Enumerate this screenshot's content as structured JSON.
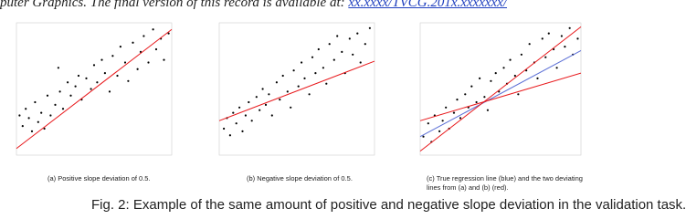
{
  "header": {
    "text": "puter Graphics. The final version of this record is available at: ",
    "link": "xx.xxxx/TVCG.201x.xxxxxxx/"
  },
  "figure_caption": "Fig. 2: Example of the same amount of positive and negative slope deviation in the validation task.",
  "chart_data": [
    {
      "type": "scatter",
      "caption": "(a) Positive slope deviation of 0.5.",
      "color": "#000000",
      "xlim": [
        0,
        100
      ],
      "ylim": [
        0,
        100
      ],
      "x": [
        2,
        4,
        6,
        8,
        10,
        12,
        14,
        16,
        18,
        20,
        22,
        25,
        27,
        28,
        30,
        33,
        35,
        38,
        40,
        42,
        45,
        48,
        50,
        52,
        55,
        57,
        60,
        62,
        65,
        67,
        70,
        72,
        75,
        78,
        80,
        82,
        85,
        88,
        90,
        93,
        95,
        98
      ],
      "values": [
        30,
        22,
        35,
        28,
        18,
        40,
        25,
        32,
        20,
        45,
        30,
        38,
        66,
        48,
        35,
        55,
        45,
        52,
        60,
        42,
        58,
        50,
        68,
        55,
        72,
        62,
        48,
        75,
        60,
        82,
        70,
        56,
        85,
        65,
        78,
        90,
        70,
        95,
        80,
        88,
        72,
        92
      ],
      "lines": [
        {
          "color": "#e8191c",
          "x": [
            0,
            100
          ],
          "y": [
            5,
            95
          ]
        }
      ]
    },
    {
      "type": "scatter",
      "caption": "(b) Negative slope deviation of 0.5.",
      "color": "#000000",
      "xlim": [
        0,
        100
      ],
      "ylim": [
        0,
        100
      ],
      "x": [
        3,
        5,
        7,
        9,
        11,
        13,
        15,
        17,
        19,
        21,
        24,
        26,
        28,
        30,
        32,
        34,
        37,
        39,
        41,
        44,
        46,
        48,
        51,
        53,
        55,
        58,
        60,
        62,
        64,
        67,
        69,
        71,
        74,
        76,
        79,
        81,
        84,
        86,
        89,
        91,
        94,
        97
      ],
      "values": [
        20,
        28,
        15,
        32,
        24,
        36,
        18,
        30,
        40,
        26,
        44,
        34,
        50,
        38,
        46,
        30,
        55,
        42,
        60,
        48,
        36,
        64,
        52,
        70,
        58,
        46,
        74,
        62,
        80,
        66,
        54,
        84,
        72,
        90,
        78,
        62,
        88,
        76,
        92,
        70,
        84,
        96
      ],
      "lines": [
        {
          "color": "#e8191c",
          "x": [
            0,
            100
          ],
          "y": [
            26,
            71
          ]
        }
      ]
    },
    {
      "type": "scatter",
      "caption": "(c) True regression line (blue) and the two deviating lines from (a) and (b) (red).",
      "color": "#000000",
      "xlim": [
        0,
        100
      ],
      "ylim": [
        0,
        100
      ],
      "x": [
        2,
        5,
        7,
        9,
        12,
        14,
        16,
        18,
        21,
        23,
        25,
        28,
        30,
        32,
        35,
        37,
        40,
        42,
        44,
        47,
        49,
        52,
        54,
        56,
        59,
        61,
        63,
        66,
        68,
        71,
        73,
        76,
        78,
        80,
        83,
        85,
        88,
        90,
        93,
        95,
        98
      ],
      "values": [
        14,
        24,
        10,
        30,
        18,
        26,
        36,
        20,
        32,
        42,
        28,
        46,
        36,
        52,
        40,
        58,
        44,
        34,
        56,
        62,
        48,
        66,
        54,
        72,
        60,
        46,
        76,
        64,
        84,
        70,
        58,
        88,
        74,
        92,
        80,
        66,
        90,
        82,
        96,
        76,
        88
      ],
      "lines": [
        {
          "color": "#5b6fd6",
          "x": [
            0,
            100
          ],
          "y": [
            14,
            79
          ]
        },
        {
          "color": "#e8191c",
          "x": [
            0,
            100
          ],
          "y": [
            26,
            62
          ]
        },
        {
          "color": "#e8191c",
          "x": [
            0,
            100
          ],
          "y": [
            3,
            97
          ]
        }
      ]
    }
  ]
}
